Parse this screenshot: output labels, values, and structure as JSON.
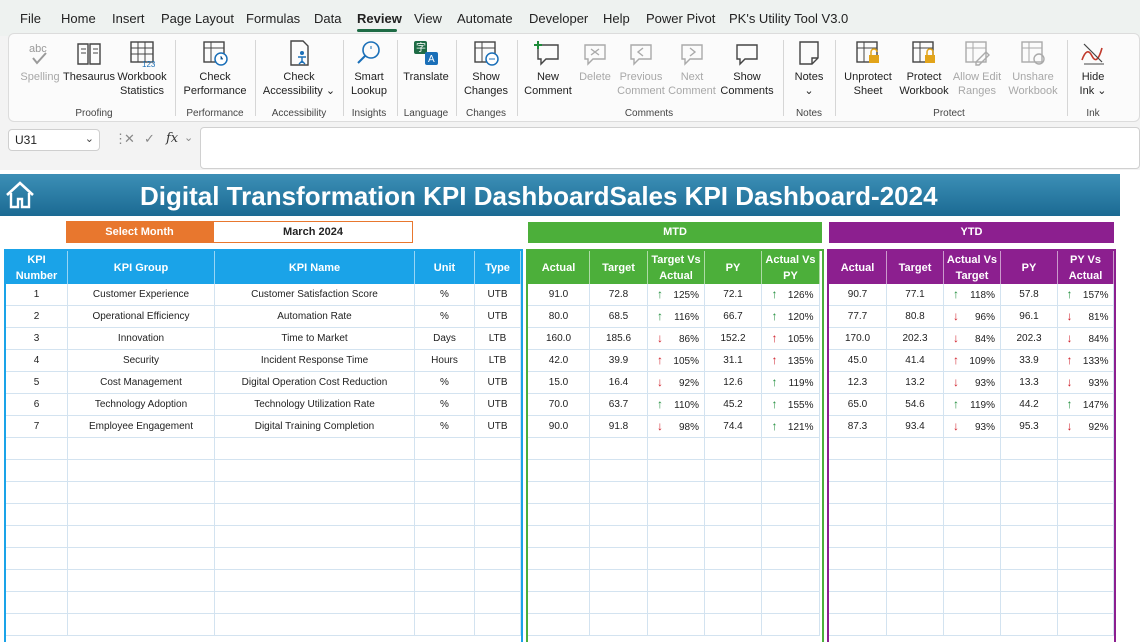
{
  "menu": {
    "tabs": [
      "File",
      "Home",
      "Insert",
      "Page Layout",
      "Formulas",
      "Data",
      "Review",
      "View",
      "Automate",
      "Developer",
      "Help",
      "Power Pivot",
      "PK's Utility Tool V3.0"
    ],
    "active": "Review"
  },
  "ribbon": {
    "spelling": "Spelling",
    "thesaurus": "Thesaurus",
    "workbook": "Workbook",
    "statistics": "Statistics",
    "check1": "Check",
    "performance": "Performance",
    "check2": "Check",
    "accessibility": "Accessibility",
    "smart": "Smart",
    "lookup": "Lookup",
    "translate": "Translate",
    "show1": "Show",
    "changes": "Changes",
    "new": "New",
    "comment1": "Comment",
    "delete": "Delete",
    "previous": "Previous",
    "comment2": "Comment",
    "next": "Next",
    "comment3": "Comment",
    "show2": "Show",
    "comments": "Comments",
    "notes": "Notes",
    "unprotect": "Unprotect",
    "sheet": "Sheet",
    "protect": "Protect",
    "workbook2": "Workbook",
    "allowedit": "Allow Edit",
    "ranges": "Ranges",
    "unshare": "Unshare",
    "workbook3": "Workbook",
    "hide": "Hide",
    "ink": "Ink",
    "groups": {
      "proofing": "Proofing",
      "performance": "Performance",
      "accessibility": "Accessibility",
      "insights": "Insights",
      "language": "Language",
      "changes": "Changes",
      "comments": "Comments",
      "notes": "Notes",
      "protect": "Protect",
      "ink": "Ink"
    }
  },
  "formula_bar": {
    "cell_ref": "U31",
    "fx": "fx",
    "value": ""
  },
  "dashboard": {
    "title": "Digital Transformation KPI DashboardSales KPI Dashboard-2024",
    "select_month_label": "Select Month",
    "select_month_value": "March 2024",
    "mtd_label": "MTD",
    "ytd_label": "YTD",
    "colors": {
      "blue": "#1aa3e8",
      "green": "#4caf3a",
      "purple": "#8c1f8f",
      "orange": "#e8772e",
      "up": "#1e8c3a",
      "down": "#d0202a"
    },
    "kpi_headers": [
      "KPI Number",
      "KPI Group",
      "KPI Name",
      "Unit",
      "Type"
    ],
    "mtd_headers": [
      "Actual",
      "Target",
      "Target Vs Actual",
      "PY",
      "Actual Vs PY"
    ],
    "ytd_headers": [
      "Actual",
      "Target",
      "Actual Vs Target",
      "PY",
      "PY Vs Actual"
    ],
    "rows": [
      {
        "num": "1",
        "group": "Customer Experience",
        "name": "Customer Satisfaction Score",
        "unit": "%",
        "type": "UTB",
        "mtd": {
          "actual": "91.0",
          "target": "72.8",
          "tva_dir": "up",
          "tva": "125%",
          "py": "72.1",
          "avp_dir": "up",
          "avp": "126%"
        },
        "ytd": {
          "actual": "90.7",
          "target": "77.1",
          "avt_dir": "up",
          "avt": "118%",
          "py": "57.8",
          "pva_dir": "up",
          "pva": "157%"
        }
      },
      {
        "num": "2",
        "group": "Operational Efficiency",
        "name": "Automation Rate",
        "unit": "%",
        "type": "UTB",
        "mtd": {
          "actual": "80.0",
          "target": "68.5",
          "tva_dir": "up",
          "tva": "116%",
          "py": "66.7",
          "avp_dir": "up",
          "avp": "120%"
        },
        "ytd": {
          "actual": "77.7",
          "target": "80.8",
          "avt_dir": "dn",
          "avt": "96%",
          "py": "96.1",
          "pva_dir": "dn",
          "pva": "81%"
        }
      },
      {
        "num": "3",
        "group": "Innovation",
        "name": "Time to Market",
        "unit": "Days",
        "type": "LTB",
        "mtd": {
          "actual": "160.0",
          "target": "185.6",
          "tva_dir": "dn",
          "tva": "86%",
          "py": "152.2",
          "avp_dir": "up_red",
          "avp": "105%"
        },
        "ytd": {
          "actual": "170.0",
          "target": "202.3",
          "avt_dir": "dn",
          "avt": "84%",
          "py": "202.3",
          "pva_dir": "dn",
          "pva": "84%"
        }
      },
      {
        "num": "4",
        "group": "Security",
        "name": "Incident Response Time",
        "unit": "Hours",
        "type": "LTB",
        "mtd": {
          "actual": "42.0",
          "target": "39.9",
          "tva_dir": "up_red",
          "tva": "105%",
          "py": "31.1",
          "avp_dir": "up_red",
          "avp": "135%"
        },
        "ytd": {
          "actual": "45.0",
          "target": "41.4",
          "avt_dir": "up_red",
          "avt": "109%",
          "py": "33.9",
          "pva_dir": "up_red",
          "pva": "133%"
        }
      },
      {
        "num": "5",
        "group": "Cost Management",
        "name": "Digital Operation Cost Reduction",
        "unit": "%",
        "type": "UTB",
        "mtd": {
          "actual": "15.0",
          "target": "16.4",
          "tva_dir": "dn",
          "tva": "92%",
          "py": "12.6",
          "avp_dir": "up",
          "avp": "119%"
        },
        "ytd": {
          "actual": "12.3",
          "target": "13.2",
          "avt_dir": "dn",
          "avt": "93%",
          "py": "13.3",
          "pva_dir": "dn",
          "pva": "93%"
        }
      },
      {
        "num": "6",
        "group": "Technology Adoption",
        "name": "Technology Utilization Rate",
        "unit": "%",
        "type": "UTB",
        "mtd": {
          "actual": "70.0",
          "target": "63.7",
          "tva_dir": "up",
          "tva": "110%",
          "py": "45.2",
          "avp_dir": "up",
          "avp": "155%"
        },
        "ytd": {
          "actual": "65.0",
          "target": "54.6",
          "avt_dir": "up",
          "avt": "119%",
          "py": "44.2",
          "pva_dir": "up",
          "pva": "147%"
        }
      },
      {
        "num": "7",
        "group": "Employee Engagement",
        "name": "Digital Training Completion",
        "unit": "%",
        "type": "UTB",
        "mtd": {
          "actual": "90.0",
          "target": "91.8",
          "tva_dir": "dn",
          "tva": "98%",
          "py": "74.4",
          "avp_dir": "up",
          "avp": "121%"
        },
        "ytd": {
          "actual": "87.3",
          "target": "93.4",
          "avt_dir": "dn",
          "avt": "93%",
          "py": "95.3",
          "pva_dir": "dn",
          "pva": "92%"
        }
      }
    ]
  }
}
